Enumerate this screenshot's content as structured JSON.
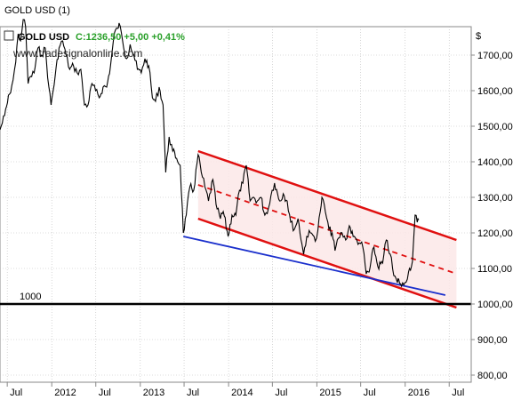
{
  "window": {
    "title": "GOLD USD (1)"
  },
  "legend": {
    "symbol": "GOLD USD",
    "quote": "C:1236,50 +5,00 +0,41%"
  },
  "watermark": "www.tradesignalonline.com",
  "colors": {
    "price": "#000000",
    "channel": "#e01010",
    "support": "#1a2fcc",
    "level": "#000000",
    "channel_fill": "#fbe8e8",
    "grid": "#bbbbbb",
    "quote": "#2aa02a"
  },
  "chart_data": {
    "type": "line",
    "title": "",
    "xlabel": "",
    "ylabel": "$",
    "x_range": [
      "2011-06-01",
      "2016-09-30"
    ],
    "ylim": [
      780,
      1780
    ],
    "grid": true,
    "y_ticks": [
      "800,00",
      "900,00",
      "1000,00",
      "1100,00",
      "1200,00",
      "1300,00",
      "1400,00",
      "1500,00",
      "1600,00",
      "1700,00"
    ],
    "x_ticks": [
      {
        "label": "Jul",
        "date": "2011-07-01"
      },
      {
        "label": "2012",
        "date": "2012-01-01"
      },
      {
        "label": "Jul",
        "date": "2012-07-01"
      },
      {
        "label": "2013",
        "date": "2013-01-01"
      },
      {
        "label": "Jul",
        "date": "2013-07-01"
      },
      {
        "label": "2014",
        "date": "2014-01-01"
      },
      {
        "label": "Jul",
        "date": "2014-07-01"
      },
      {
        "label": "2015",
        "date": "2015-01-01"
      },
      {
        "label": "Jul",
        "date": "2015-07-01"
      },
      {
        "label": "2016",
        "date": "2016-01-01"
      },
      {
        "label": "Jul",
        "date": "2016-07-01"
      }
    ],
    "series": [
      {
        "points": [
          [
            "2011-06-01",
            1490
          ],
          [
            "2011-06-20",
            1530
          ],
          [
            "2011-07-10",
            1590
          ],
          [
            "2011-07-25",
            1630
          ],
          [
            "2011-08-05",
            1680
          ],
          [
            "2011-08-15",
            1760
          ],
          [
            "2011-08-25",
            1740
          ],
          [
            "2011-09-05",
            1800
          ],
          [
            "2011-09-15",
            1780
          ],
          [
            "2011-09-25",
            1620
          ],
          [
            "2011-10-05",
            1640
          ],
          [
            "2011-10-20",
            1650
          ],
          [
            "2011-11-05",
            1720
          ],
          [
            "2011-11-20",
            1700
          ],
          [
            "2011-12-05",
            1720
          ],
          [
            "2011-12-20",
            1610
          ],
          [
            "2011-12-29",
            1560
          ],
          [
            "2012-01-15",
            1640
          ],
          [
            "2012-01-31",
            1720
          ],
          [
            "2012-02-15",
            1740
          ],
          [
            "2012-02-29",
            1700
          ],
          [
            "2012-03-15",
            1660
          ],
          [
            "2012-03-31",
            1670
          ],
          [
            "2012-04-15",
            1650
          ],
          [
            "2012-04-30",
            1660
          ],
          [
            "2012-05-15",
            1560
          ],
          [
            "2012-05-30",
            1560
          ],
          [
            "2012-06-15",
            1620
          ],
          [
            "2012-06-30",
            1600
          ],
          [
            "2012-07-15",
            1580
          ],
          [
            "2012-07-31",
            1610
          ],
          [
            "2012-08-15",
            1610
          ],
          [
            "2012-08-31",
            1670
          ],
          [
            "2012-09-15",
            1760
          ],
          [
            "2012-09-30",
            1775
          ],
          [
            "2012-10-05",
            1790
          ],
          [
            "2012-10-20",
            1740
          ],
          [
            "2012-11-05",
            1690
          ],
          [
            "2012-11-20",
            1730
          ],
          [
            "2012-12-05",
            1700
          ],
          [
            "2012-12-20",
            1660
          ],
          [
            "2013-01-05",
            1650
          ],
          [
            "2013-01-20",
            1690
          ],
          [
            "2013-02-05",
            1670
          ],
          [
            "2013-02-20",
            1580
          ],
          [
            "2013-03-05",
            1570
          ],
          [
            "2013-03-20",
            1610
          ],
          [
            "2013-04-05",
            1560
          ],
          [
            "2013-04-16",
            1370
          ],
          [
            "2013-04-30",
            1470
          ],
          [
            "2013-05-15",
            1430
          ],
          [
            "2013-05-31",
            1410
          ],
          [
            "2013-06-15",
            1390
          ],
          [
            "2013-06-28",
            1200
          ],
          [
            "2013-07-10",
            1250
          ],
          [
            "2013-07-25",
            1330
          ],
          [
            "2013-08-10",
            1320
          ],
          [
            "2013-08-28",
            1420
          ],
          [
            "2013-09-10",
            1370
          ],
          [
            "2013-09-25",
            1330
          ],
          [
            "2013-10-10",
            1290
          ],
          [
            "2013-10-28",
            1350
          ],
          [
            "2013-11-10",
            1280
          ],
          [
            "2013-11-28",
            1240
          ],
          [
            "2013-12-10",
            1260
          ],
          [
            "2013-12-30",
            1190
          ],
          [
            "2014-01-15",
            1250
          ],
          [
            "2014-01-31",
            1250
          ],
          [
            "2014-02-15",
            1320
          ],
          [
            "2014-03-01",
            1340
          ],
          [
            "2014-03-15",
            1390
          ],
          [
            "2014-03-31",
            1290
          ],
          [
            "2014-04-15",
            1300
          ],
          [
            "2014-04-30",
            1290
          ],
          [
            "2014-05-15",
            1300
          ],
          [
            "2014-05-31",
            1250
          ],
          [
            "2014-06-15",
            1270
          ],
          [
            "2014-06-30",
            1320
          ],
          [
            "2014-07-10",
            1340
          ],
          [
            "2014-07-31",
            1290
          ],
          [
            "2014-08-15",
            1310
          ],
          [
            "2014-08-31",
            1290
          ],
          [
            "2014-09-15",
            1230
          ],
          [
            "2014-09-30",
            1210
          ],
          [
            "2014-10-15",
            1240
          ],
          [
            "2014-10-31",
            1170
          ],
          [
            "2014-11-07",
            1140
          ],
          [
            "2014-11-20",
            1190
          ],
          [
            "2014-12-05",
            1200
          ],
          [
            "2014-12-20",
            1190
          ],
          [
            "2014-12-31",
            1185
          ],
          [
            "2015-01-15",
            1260
          ],
          [
            "2015-01-22",
            1300
          ],
          [
            "2015-02-05",
            1260
          ],
          [
            "2015-02-20",
            1210
          ],
          [
            "2015-03-05",
            1200
          ],
          [
            "2015-03-17",
            1150
          ],
          [
            "2015-03-31",
            1185
          ],
          [
            "2015-04-15",
            1200
          ],
          [
            "2015-04-30",
            1180
          ],
          [
            "2015-05-15",
            1220
          ],
          [
            "2015-05-31",
            1190
          ],
          [
            "2015-06-15",
            1180
          ],
          [
            "2015-06-30",
            1170
          ],
          [
            "2015-07-10",
            1160
          ],
          [
            "2015-07-24",
            1085
          ],
          [
            "2015-08-05",
            1090
          ],
          [
            "2015-08-25",
            1160
          ],
          [
            "2015-09-10",
            1105
          ],
          [
            "2015-09-30",
            1115
          ],
          [
            "2015-10-15",
            1180
          ],
          [
            "2015-10-31",
            1140
          ],
          [
            "2015-11-15",
            1080
          ],
          [
            "2015-11-30",
            1060
          ],
          [
            "2015-12-05",
            1070
          ],
          [
            "2015-12-17",
            1050
          ],
          [
            "2015-12-31",
            1060
          ],
          [
            "2016-01-15",
            1090
          ],
          [
            "2016-01-31",
            1120
          ],
          [
            "2016-02-11",
            1250
          ],
          [
            "2016-02-20",
            1230
          ],
          [
            "2016-02-26",
            1236.5
          ]
        ]
      }
    ],
    "annotations": [
      {
        "type": "channel_upper",
        "from": [
          "2013-08-28",
          1430
        ],
        "to": [
          "2016-07-31",
          1180
        ]
      },
      {
        "type": "channel_lower",
        "from": [
          "2013-08-28",
          1240
        ],
        "to": [
          "2016-07-31",
          990
        ]
      },
      {
        "type": "channel_mid",
        "from": [
          "2013-08-28",
          1335
        ],
        "to": [
          "2016-07-31",
          1085
        ]
      },
      {
        "type": "support_line",
        "from": [
          "2013-06-28",
          1190
        ],
        "to": [
          "2016-06-15",
          1025
        ]
      },
      {
        "type": "horizontal_level",
        "y": 1000,
        "label": "1000"
      }
    ]
  }
}
